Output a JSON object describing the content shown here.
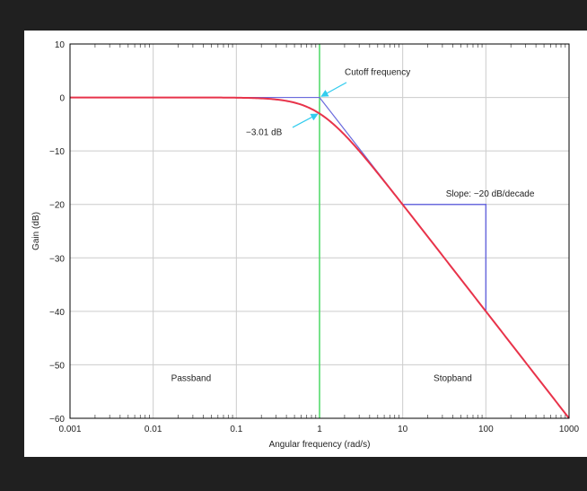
{
  "chart_data": {
    "type": "line",
    "xlabel": "Angular frequency (rad/s)",
    "ylabel": "Gain (dB)",
    "xscale": "log",
    "xlim": [
      0.001,
      1000
    ],
    "ylim": [
      -60,
      10
    ],
    "xticks": [
      "0.001",
      "0.01",
      "0.1",
      "1",
      "10",
      "100",
      "1000"
    ],
    "yticks": [
      "10",
      "0",
      "−10",
      "−20",
      "−30",
      "−40",
      "−50",
      "−60"
    ],
    "grid": true,
    "series": [
      {
        "color": "#e8334a",
        "function": "first-order low-pass gain, cutoff 1 rad/s"
      },
      {
        "color": "#6b6bdd",
        "x": [
          0.001,
          1,
          1000
        ],
        "y": [
          0,
          0,
          -60
        ]
      }
    ],
    "cutoff_line": {
      "x": 1,
      "color": "#4cd964"
    },
    "slope_box": {
      "x": [
        10,
        100
      ],
      "y": [
        -20,
        -40
      ],
      "color": "#6b6bdd"
    },
    "annotations": {
      "cutoff": "Cutoff frequency",
      "minus3db": "−3.01 dB",
      "slope": "Slope: −20 dB/decade",
      "passband": "Passband",
      "stopband": "Stopband"
    },
    "colors": {
      "arrow": "#33ccee",
      "grid": "#cccccc",
      "frame": "#000000"
    }
  }
}
